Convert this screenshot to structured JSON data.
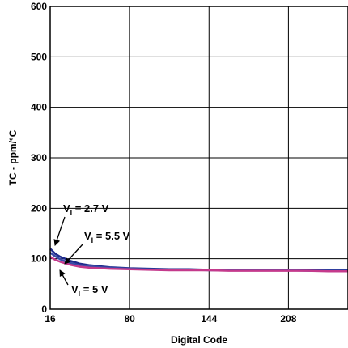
{
  "chart_data": {
    "type": "line",
    "xlabel": "Digital Code",
    "ylabel": "TC - ppm/°C",
    "xlim": [
      16,
      256
    ],
    "ylim": [
      0,
      600
    ],
    "xticks": [
      16,
      80,
      144,
      208
    ],
    "yticks": [
      0,
      100,
      200,
      300,
      400,
      500,
      600
    ],
    "grid": true,
    "series": [
      {
        "name": "VI = 2.7 V",
        "color": "#1e2a8c",
        "x": [
          16,
          20,
          24,
          28,
          32,
          36,
          40,
          48,
          56,
          64,
          80,
          96,
          112,
          128,
          144,
          160,
          176,
          192,
          208,
          224,
          240,
          256
        ],
        "y": [
          120,
          110,
          104,
          100,
          96,
          93,
          90,
          87,
          85,
          83,
          81,
          80,
          79,
          79,
          78,
          78,
          78,
          77,
          77,
          77,
          77,
          77
        ]
      },
      {
        "name": "VI = 5.5 V",
        "color": "#3a4aa8",
        "x": [
          16,
          20,
          24,
          28,
          32,
          36,
          40,
          48,
          56,
          64,
          80,
          96,
          112,
          128,
          144,
          160,
          176,
          192,
          208,
          224,
          240,
          256
        ],
        "y": [
          112,
          105,
          99,
          95,
          92,
          89,
          87,
          85,
          83,
          82,
          80,
          79,
          78,
          78,
          77,
          77,
          77,
          77,
          77,
          76,
          76,
          76
        ]
      },
      {
        "name": "VI = 5 V",
        "color": "#c43a8c",
        "x": [
          16,
          20,
          24,
          28,
          32,
          36,
          40,
          48,
          56,
          64,
          80,
          96,
          112,
          128,
          144,
          160,
          176,
          192,
          208,
          224,
          240,
          256
        ],
        "y": [
          104,
          98,
          94,
          91,
          88,
          86,
          84,
          82,
          81,
          80,
          79,
          78,
          77,
          77,
          77,
          76,
          76,
          76,
          76,
          76,
          75,
          75
        ]
      }
    ],
    "annotations": [
      {
        "main": "V",
        "sub": "I",
        "rest": " = 2.7 V",
        "series": 0
      },
      {
        "main": "V",
        "sub": "I",
        "rest": " = 5.5 V",
        "series": 1
      },
      {
        "main": "V",
        "sub": "I",
        "rest": " = 5 V",
        "series": 2
      }
    ]
  }
}
